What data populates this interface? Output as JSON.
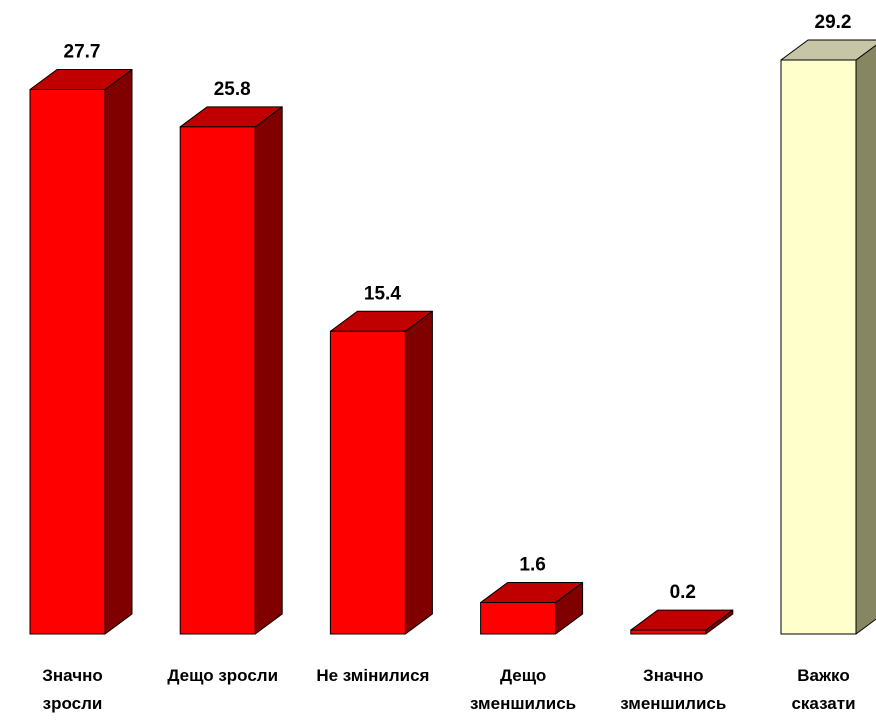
{
  "chart_data": {
    "type": "bar",
    "style": "3d-column",
    "categories": [
      [
        "Значно",
        "зросли"
      ],
      [
        "Дещо зросли"
      ],
      [
        "Не змінилися"
      ],
      [
        "Дещо",
        "зменшились"
      ],
      [
        "Значно",
        "зменшились"
      ],
      [
        "Важко",
        "сказати"
      ]
    ],
    "values": [
      27.7,
      25.8,
      15.4,
      1.6,
      0.2,
      29.2
    ],
    "value_labels": [
      "27.7",
      "25.8",
      "15.4",
      "1.6",
      "0.2",
      "29.2"
    ],
    "ylim": [
      0,
      29.2
    ],
    "grid": false,
    "legend": "none",
    "colors": {
      "front": [
        "#ff0000",
        "#ff0000",
        "#ff0000",
        "#ff0000",
        "#ff0000",
        "#ffffcc"
      ],
      "top": [
        "#c00000",
        "#c00000",
        "#c00000",
        "#c00000",
        "#c00000",
        "#c6c6a6"
      ],
      "side": [
        "#800000",
        "#800000",
        "#800000",
        "#800000",
        "#800000",
        "#868662"
      ]
    }
  }
}
